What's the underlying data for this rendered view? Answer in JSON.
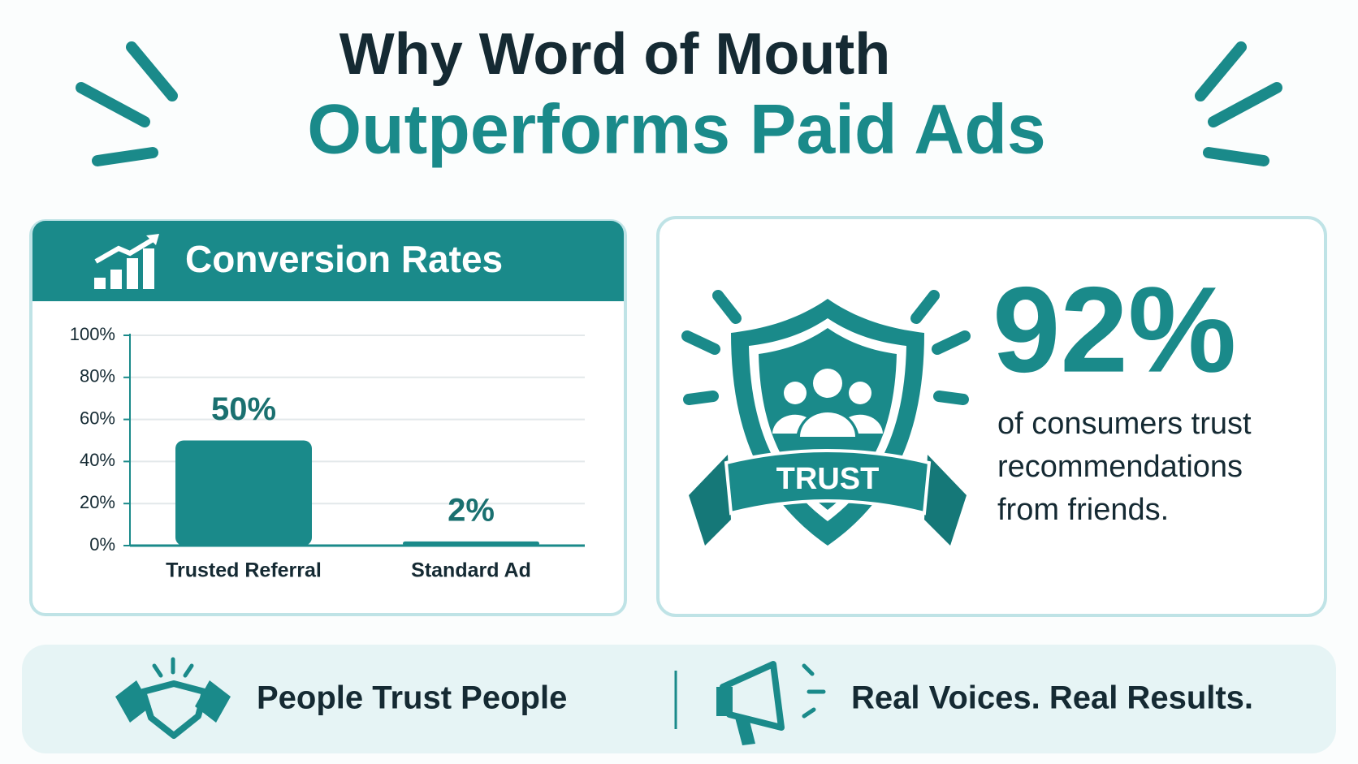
{
  "header": {
    "line1": "Why Word of Mouth",
    "line2": "Outperforms Paid Ads"
  },
  "chart_data": {
    "type": "bar",
    "title": "Conversion Rates",
    "categories": [
      "Trusted Referral",
      "Standard Ad"
    ],
    "values": [
      50,
      2
    ],
    "value_labels": [
      "50%",
      "2%"
    ],
    "color": "#1a8a8a",
    "ylim": [
      0,
      100
    ],
    "yticks": [
      {
        "value": 0,
        "label": "0%"
      },
      {
        "value": 20,
        "label": "20%"
      },
      {
        "value": 40,
        "label": "40%"
      },
      {
        "value": 60,
        "label": "60%"
      },
      {
        "value": 80,
        "label": "80%"
      },
      {
        "value": 100,
        "label": "100%"
      }
    ],
    "grid": true
  },
  "stat": {
    "figure": "92%",
    "lines": [
      "of consumers trust",
      "recommendations",
      "from friends."
    ],
    "badge": "TRUST"
  },
  "footer": {
    "left": "People Trust People",
    "right": "Real Voices. Real Results."
  }
}
